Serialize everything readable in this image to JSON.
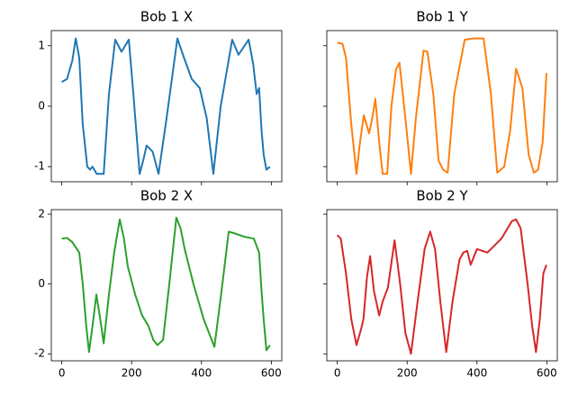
{
  "chart_data": [
    {
      "type": "line",
      "title": "Bob 1 X",
      "color": "#1f77b4",
      "x": [
        0,
        15,
        30,
        40,
        50,
        60,
        73,
        81,
        88,
        100,
        120,
        135,
        153,
        171,
        192,
        205,
        223,
        233,
        243,
        260,
        277,
        300,
        331,
        350,
        372,
        395,
        415,
        434,
        455,
        488,
        506,
        535,
        548,
        558,
        565,
        572,
        578,
        586,
        596
      ],
      "values": [
        0.4,
        0.45,
        0.75,
        1.12,
        0.8,
        -0.3,
        -1.0,
        -1.05,
        -1.0,
        -1.12,
        -1.12,
        0.2,
        1.1,
        0.9,
        1.1,
        0.2,
        -1.12,
        -0.9,
        -0.65,
        -0.75,
        -1.12,
        -0.2,
        1.12,
        0.8,
        0.45,
        0.3,
        -0.2,
        -1.12,
        0.0,
        1.1,
        0.85,
        1.1,
        0.7,
        0.2,
        0.3,
        -0.4,
        -0.8,
        -1.05,
        -1.0
      ],
      "xlim": [
        -30,
        630
      ],
      "ylim": [
        -1.25,
        1.25
      ],
      "xticks": [
        0,
        200,
        400,
        600
      ],
      "yticks": [
        -1,
        0,
        1
      ],
      "xtick_labels": false,
      "ytick_labels": true
    },
    {
      "type": "line",
      "title": "Bob 1 Y",
      "color": "#ff7f0e",
      "x": [
        0,
        15,
        25,
        40,
        55,
        65,
        76,
        91,
        100,
        109,
        120,
        130,
        143,
        155,
        168,
        178,
        195,
        211,
        225,
        247,
        258,
        275,
        290,
        303,
        316,
        335,
        365,
        390,
        419,
        440,
        458,
        478,
        495,
        512,
        530,
        548,
        563,
        575,
        588,
        599
      ],
      "values": [
        1.05,
        1.03,
        0.8,
        -0.3,
        -1.12,
        -0.6,
        -0.15,
        -0.45,
        -0.2,
        0.12,
        -0.6,
        -1.12,
        -1.12,
        0.0,
        0.6,
        0.72,
        -0.2,
        -1.12,
        -0.2,
        0.92,
        0.9,
        0.2,
        -0.9,
        -1.05,
        -1.1,
        0.2,
        1.1,
        1.12,
        1.12,
        0.2,
        -1.1,
        -1.0,
        -0.4,
        0.62,
        0.3,
        -0.8,
        -1.1,
        -1.05,
        -0.6,
        0.55
      ],
      "xlim": [
        -30,
        630
      ],
      "ylim": [
        -1.25,
        1.25
      ],
      "xticks": [
        0,
        200,
        400,
        600
      ],
      "yticks": [
        -1,
        0,
        1
      ],
      "xtick_labels": false,
      "ytick_labels": false
    },
    {
      "type": "line",
      "title": "Bob 2 X",
      "color": "#2ca02c",
      "x": [
        0,
        15,
        30,
        50,
        60,
        70,
        78,
        88,
        99,
        110,
        120,
        135,
        150,
        166,
        178,
        189,
        210,
        230,
        248,
        262,
        274,
        290,
        310,
        328,
        340,
        352,
        377,
        406,
        437,
        455,
        478,
        495,
        524,
        550,
        565,
        572,
        578,
        586,
        596
      ],
      "values": [
        1.3,
        1.32,
        1.2,
        0.9,
        0.0,
        -1.2,
        -1.95,
        -1.2,
        -0.3,
        -1.0,
        -1.7,
        -0.3,
        0.9,
        1.85,
        1.3,
        0.5,
        -0.3,
        -0.9,
        -1.2,
        -1.6,
        -1.75,
        -1.6,
        0.2,
        1.9,
        1.6,
        1.0,
        0.0,
        -1.0,
        -1.8,
        -0.4,
        1.5,
        1.45,
        1.35,
        1.3,
        0.9,
        -0.2,
        -1.0,
        -1.9,
        -1.75
      ],
      "xlim": [
        -30,
        630
      ],
      "ylim": [
        -2.2,
        2.13
      ],
      "xticks": [
        0,
        200,
        400,
        600
      ],
      "yticks": [
        -2,
        0,
        2
      ],
      "xtick_labels": true,
      "ytick_labels": true
    },
    {
      "type": "line",
      "title": "Bob 2 Y",
      "color": "#d62728",
      "x": [
        0,
        10,
        25,
        40,
        55,
        68,
        75,
        85,
        94,
        105,
        120,
        130,
        145,
        164,
        180,
        195,
        211,
        230,
        250,
        266,
        280,
        295,
        312,
        330,
        350,
        361,
        372,
        382,
        400,
        430,
        470,
        500,
        512,
        525,
        545,
        558,
        569,
        580,
        590,
        599
      ],
      "values": [
        1.4,
        1.3,
        0.3,
        -1.0,
        -1.75,
        -1.3,
        -1.0,
        0.2,
        0.8,
        -0.2,
        -0.9,
        -0.5,
        -0.1,
        1.25,
        0.0,
        -1.4,
        -2.0,
        -0.5,
        1.0,
        1.5,
        1.0,
        -0.5,
        -1.95,
        -0.5,
        0.7,
        0.9,
        0.95,
        0.55,
        1.0,
        0.9,
        1.3,
        1.8,
        1.85,
        1.6,
        0.0,
        -1.2,
        -1.95,
        -1.0,
        0.3,
        0.55
      ],
      "xlim": [
        -30,
        630
      ],
      "ylim": [
        -2.2,
        2.13
      ],
      "xticks": [
        0,
        200,
        400,
        600
      ],
      "yticks": [
        -2,
        0,
        2
      ],
      "xtick_labels": true,
      "ytick_labels": false
    }
  ]
}
